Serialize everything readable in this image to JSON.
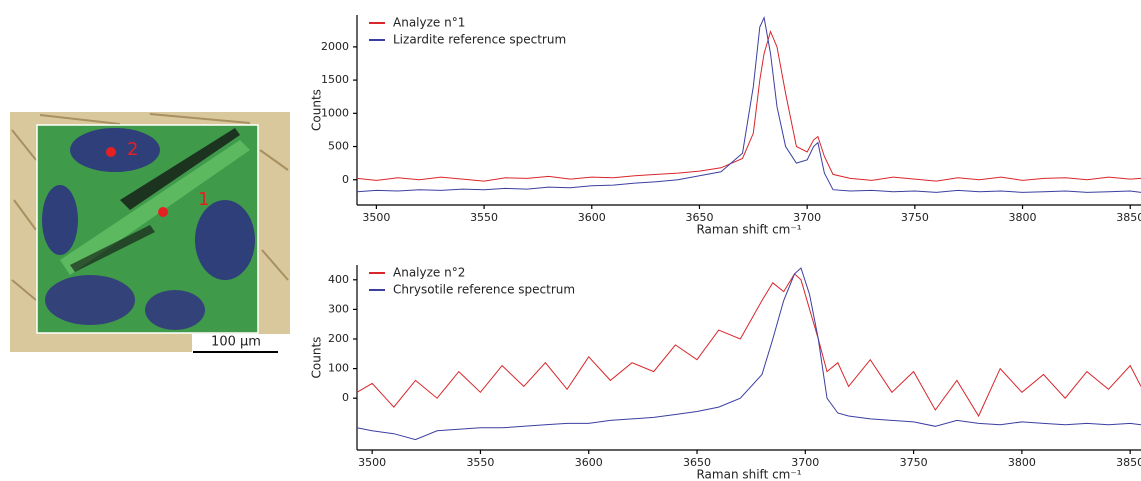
{
  "image": {
    "points": [
      "1",
      "2"
    ],
    "scale_bar": "100 µm"
  },
  "chart_data": [
    {
      "type": "line",
      "xlabel": "Raman shift cm⁻¹",
      "ylabel": "Counts",
      "legend": "upper left",
      "xlim": [
        3491,
        3855
      ],
      "xticks": [
        3500,
        3550,
        3600,
        3650,
        3700,
        3750,
        3800,
        3850
      ],
      "ylim": [
        -380,
        2480
      ],
      "yticks": [
        0,
        500,
        1000,
        1500,
        2000
      ],
      "x": [
        3491,
        3500,
        3510,
        3520,
        3530,
        3540,
        3550,
        3560,
        3570,
        3580,
        3590,
        3600,
        3610,
        3620,
        3630,
        3640,
        3650,
        3660,
        3670,
        3675,
        3678,
        3680,
        3683,
        3686,
        3690,
        3695,
        3700,
        3703,
        3705,
        3708,
        3712,
        3720,
        3730,
        3740,
        3750,
        3760,
        3770,
        3780,
        3790,
        3800,
        3810,
        3820,
        3830,
        3840,
        3850,
        3855
      ],
      "series": [
        {
          "name": "Analyze n°1",
          "color": "#d9262b",
          "values": [
            20,
            -10,
            30,
            0,
            40,
            10,
            -20,
            30,
            20,
            50,
            10,
            40,
            30,
            60,
            80,
            100,
            130,
            180,
            320,
            700,
            1500,
            1900,
            2230,
            2000,
            1300,
            500,
            420,
            600,
            650,
            350,
            80,
            20,
            -10,
            40,
            10,
            -20,
            30,
            0,
            40,
            -10,
            20,
            30,
            0,
            40,
            10,
            20
          ]
        },
        {
          "name": "Lizardite reference spectrum",
          "color": "#3b3fa0",
          "values": [
            -180,
            -160,
            -170,
            -150,
            -160,
            -140,
            -150,
            -130,
            -140,
            -110,
            -120,
            -90,
            -80,
            -50,
            -30,
            0,
            60,
            120,
            400,
            1400,
            2300,
            2440,
            1900,
            1100,
            500,
            250,
            300,
            500,
            560,
            100,
            -150,
            -170,
            -160,
            -180,
            -170,
            -190,
            -160,
            -180,
            -170,
            -190,
            -180,
            -170,
            -190,
            -180,
            -170,
            -190
          ]
        }
      ]
    },
    {
      "type": "line",
      "xlabel": "Raman shift cm⁻¹",
      "ylabel": "Counts",
      "legend": "upper left",
      "xlim": [
        3493,
        3855
      ],
      "xticks": [
        3500,
        3550,
        3600,
        3650,
        3700,
        3750,
        3800,
        3850
      ],
      "ylim": [
        -175,
        450
      ],
      "yticks": [
        0,
        100,
        200,
        300,
        400
      ],
      "x": [
        3493,
        3500,
        3510,
        3520,
        3530,
        3540,
        3550,
        3560,
        3570,
        3580,
        3590,
        3600,
        3610,
        3620,
        3630,
        3640,
        3650,
        3660,
        3670,
        3680,
        3685,
        3690,
        3695,
        3698,
        3702,
        3706,
        3710,
        3715,
        3720,
        3730,
        3740,
        3750,
        3760,
        3770,
        3780,
        3790,
        3800,
        3810,
        3820,
        3830,
        3840,
        3850,
        3855
      ],
      "series": [
        {
          "name": "Analyze n°2",
          "color": "#d9262b",
          "values": [
            20,
            50,
            -30,
            60,
            0,
            90,
            20,
            110,
            40,
            120,
            30,
            140,
            60,
            120,
            90,
            180,
            130,
            230,
            200,
            330,
            390,
            360,
            420,
            400,
            300,
            200,
            90,
            120,
            40,
            130,
            20,
            90,
            -40,
            60,
            -60,
            100,
            20,
            80,
            0,
            90,
            30,
            110,
            40
          ]
        },
        {
          "name": "Chrysotile reference spectrum",
          "color": "#3b3fa0",
          "values": [
            -100,
            -110,
            -120,
            -140,
            -110,
            -105,
            -100,
            -100,
            -95,
            -90,
            -85,
            -85,
            -75,
            -70,
            -65,
            -55,
            -45,
            -30,
            0,
            80,
            200,
            330,
            420,
            440,
            350,
            200,
            0,
            -50,
            -60,
            -70,
            -75,
            -80,
            -95,
            -75,
            -85,
            -90,
            -80,
            -85,
            -90,
            -85,
            -90,
            -85,
            -90
          ]
        }
      ]
    }
  ]
}
